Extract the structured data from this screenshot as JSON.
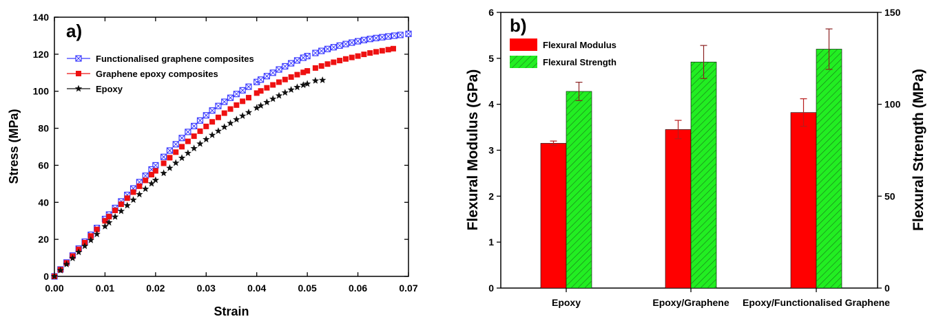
{
  "chart_data": [
    {
      "type": "scatter",
      "panel_label": "a)",
      "xlabel": "Strain",
      "ylabel": "Stress (MPa)",
      "xlim": [
        0,
        0.07
      ],
      "ylim": [
        0,
        140
      ],
      "x_ticks": [
        "0.00",
        "0.01",
        "0.02",
        "0.03",
        "0.04",
        "0.05",
        "0.06",
        "0.07"
      ],
      "y_ticks": [
        "0",
        "20",
        "40",
        "60",
        "80",
        "100",
        "120",
        "140"
      ],
      "legend_position": "top-left",
      "grid": false,
      "series": [
        {
          "name": "Functionalised graphene composites",
          "marker": "crossed-square",
          "color": "#3a3aff",
          "x": [
            0,
            0.01,
            0.02,
            0.03,
            0.04,
            0.05,
            0.06,
            0.07
          ],
          "y": [
            0,
            31,
            60,
            87,
            105,
            119,
            127,
            131
          ]
        },
        {
          "name": "Graphene epoxy composites",
          "marker": "filled-square",
          "color": "#ee1111",
          "x": [
            0,
            0.01,
            0.02,
            0.03,
            0.04,
            0.05,
            0.06,
            0.067
          ],
          "y": [
            0,
            30,
            57,
            81,
            99,
            111,
            119,
            123
          ]
        },
        {
          "name": "Epoxy",
          "marker": "star",
          "color": "#111111",
          "x": [
            0,
            0.01,
            0.02,
            0.03,
            0.04,
            0.05,
            0.053
          ],
          "y": [
            0,
            27,
            52,
            74,
            91,
            104,
            106
          ]
        }
      ]
    },
    {
      "type": "bar",
      "panel_label": "b)",
      "categories": [
        "Epoxy",
        "Epoxy/Graphene",
        "Epoxy/Functionalised Graphene"
      ],
      "ylabel": "Flexural Modulus (GPa)",
      "y2label": "Flexural Strength (MPa)",
      "ylim": [
        0,
        6
      ],
      "y2lim": [
        0,
        150
      ],
      "y_ticks": [
        "0",
        "1",
        "2",
        "3",
        "4",
        "5",
        "6"
      ],
      "y2_ticks": [
        "0",
        "50",
        "100",
        "150"
      ],
      "legend_position": "top-left",
      "grid": false,
      "series": [
        {
          "name": "Flexural Modulus",
          "axis": "left",
          "color": "#ff0000",
          "values": [
            3.15,
            3.45,
            3.82
          ],
          "error": [
            0.05,
            0.2,
            0.3
          ]
        },
        {
          "name": "Flexural Strength",
          "axis": "right",
          "color": "#22ee22",
          "hatched": true,
          "values": [
            107,
            123,
            130
          ],
          "error": [
            5,
            9,
            11
          ]
        }
      ]
    }
  ]
}
